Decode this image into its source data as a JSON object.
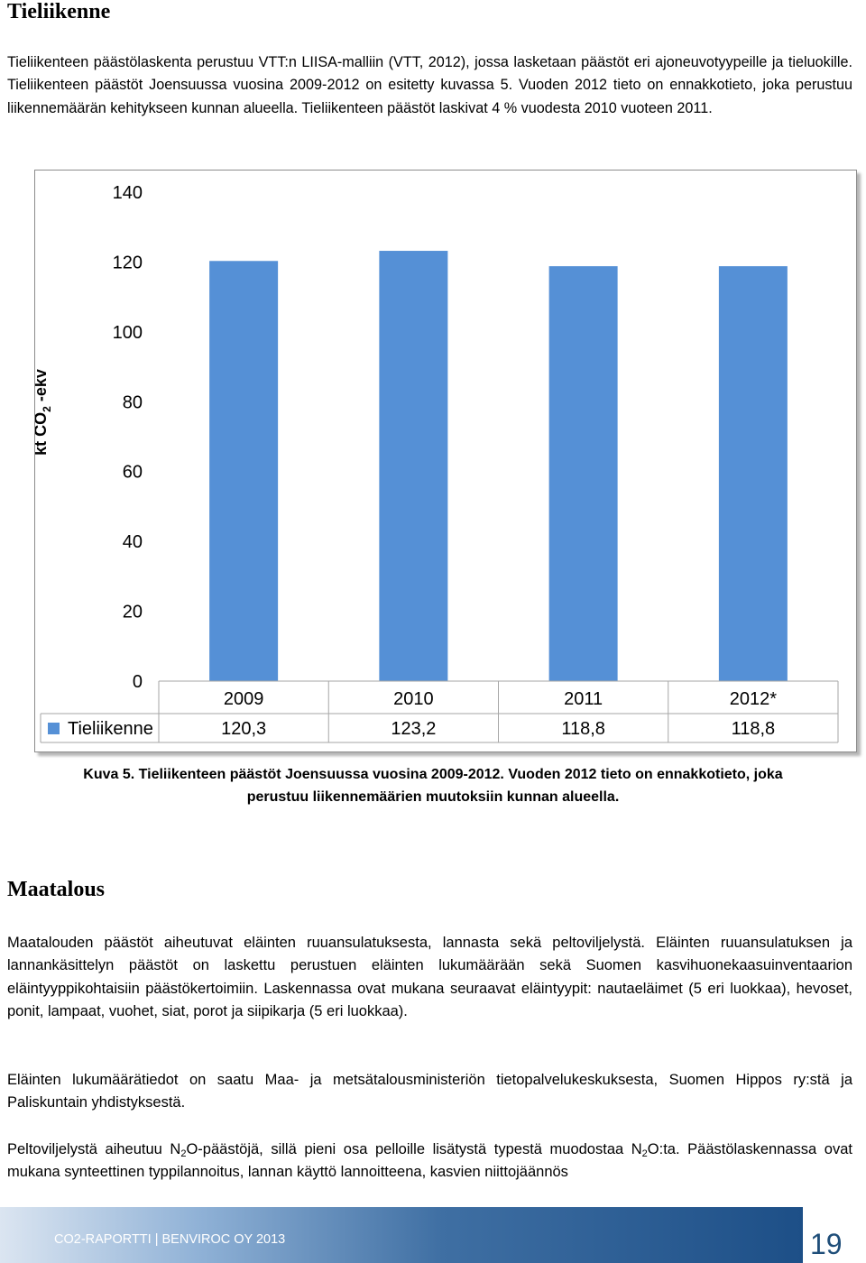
{
  "section1": {
    "heading": "Tieliikenne",
    "intro": "Tieliikenteen päästölaskenta perustuu VTT:n LIISA-malliin (VTT, 2012), jossa lasketaan päästöt eri ajoneuvotyypeille ja tieluokille. Tieliikenteen päästöt Joensuussa vuosina 2009-2012 on esitetty kuvassa 5. Vuoden 2012 tieto on ennakkotieto, joka perustuu liikennemäärän kehitykseen kunnan alueella. Tieliikenteen päästöt laskivat 4 % vuodesta 2010 vuoteen 2011."
  },
  "chart_data": {
    "type": "bar",
    "categories": [
      "2009",
      "2010",
      "2011",
      "2012*"
    ],
    "series": [
      {
        "name": "Tieliikenne",
        "values": [
          120.3,
          123.2,
          118.8,
          118.8
        ],
        "labels": [
          "120,3",
          "123,2",
          "118,8",
          "118,8"
        ],
        "color": "#5590d6"
      }
    ],
    "ylabel": {
      "main": "kt CO",
      "sub": "2",
      "suffix": " -ekv"
    },
    "ylim": [
      0,
      140
    ],
    "yticks": [
      0,
      20,
      40,
      60,
      80,
      100,
      120,
      140
    ],
    "grid": false,
    "legend": "data-table",
    "border_color": "#8c8c8c"
  },
  "caption": {
    "line1": "Kuva 5. Tieliikenteen päästöt Joensuussa vuosina 2009-2012. Vuoden 2012 tieto on ennakkotieto, joka",
    "line2": "perustuu liikennemäärien muutoksiin kunnan alueella."
  },
  "section2": {
    "heading": "Maatalous",
    "p1": "Maatalouden päästöt aiheutuvat eläinten ruuansulatuksesta, lannasta sekä peltoviljelystä. Eläinten ruuansulatuksen ja lannankäsittelyn päästöt on laskettu perustuen eläinten lukumäärään sekä Suomen kasvihuonekaasuinventaarion eläintyyppikohtaisiin päästökertoimiin. Laskennassa ovat mukana seuraavat eläintyypit: nautaeläimet (5 eri luokkaa), hevoset, ponit, lampaat, vuohet, siat, porot ja siipikarja (5 eri luokkaa).",
    "p2": "Eläinten lukumäärätiedot on saatu Maa- ja metsätalousministeriön tietopalvelukeskuksesta, Suomen Hippos ry:stä ja Paliskuntain yhdistyksestä.",
    "p3": {
      "part1": "Peltoviljelystä aiheutuu N",
      "sub1": "2",
      "part2": "O-päästöjä, sillä pieni osa pelloille lisätystä typestä muodostaa N",
      "sub2": "2",
      "part3": "O:ta. Päästölaskennassa ovat mukana synteettinen typpilannoitus, lannan käyttö lannoitteena, kasvien niittojäännös"
    }
  },
  "footer": {
    "text": "CO2-RAPORTTI | BENVIROC OY 2013",
    "page_number": "19",
    "colors": {
      "light": "#dbe5f1",
      "mid": "#3f6fa3",
      "dark": "#1d4f87"
    }
  }
}
